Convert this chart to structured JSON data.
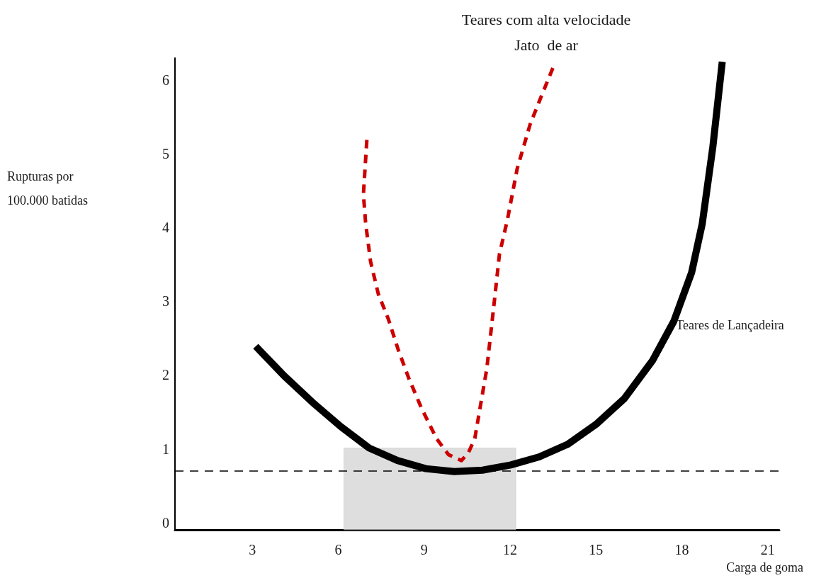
{
  "chart_data": {
    "type": "line",
    "xlabel": "Carga de goma",
    "annotations": [
      "Rupturas por\n100.000 batidas"
    ],
    "xlim": [
      0.3,
      21.4
    ],
    "xticks": [
      3,
      6,
      9,
      12,
      15,
      18,
      21
    ],
    "ylim": [
      -0.1,
      6.3
    ],
    "yticks": [
      0,
      1,
      2,
      3,
      4,
      5,
      6
    ],
    "grid": false,
    "legend": false,
    "marker": "none",
    "series": [
      {
        "name": "Teares de Lançadeira",
        "color": "#000000",
        "line_style": "solid",
        "x": [
          3.12,
          4.11,
          5.1,
          6.09,
          7.08,
          8.07,
          9.06,
          10.05,
          11.04,
          12.03,
          13.02,
          14.01,
          15.0,
          15.99,
          16.98,
          17.72,
          18.34,
          18.71,
          19.08,
          19.41
        ],
        "values": [
          2.39,
          1.99,
          1.63,
          1.3,
          1.01,
          0.84,
          0.73,
          0.69,
          0.71,
          0.78,
          0.89,
          1.06,
          1.33,
          1.68,
          2.2,
          2.73,
          3.39,
          4.05,
          5.09,
          6.25
        ]
      },
      {
        "name": "Teares com alta velocidade\nJato  de ar",
        "color": "#cc0000",
        "line_style": "dashed",
        "x": [
          7.0,
          6.88,
          6.96,
          7.13,
          7.4,
          7.75,
          8.09,
          8.47,
          8.91,
          9.43,
          9.85,
          10.3,
          10.54,
          10.77,
          11.19,
          11.46,
          11.63,
          11.91,
          12.25,
          12.7,
          13.09,
          13.51
        ],
        "values": [
          5.19,
          4.45,
          4.05,
          3.54,
          3.1,
          2.76,
          2.35,
          1.95,
          1.55,
          1.14,
          0.92,
          0.84,
          0.94,
          1.14,
          2.09,
          3.03,
          3.64,
          4.11,
          4.8,
          5.4,
          5.78,
          6.18
        ]
      }
    ],
    "ref_lines": [
      {
        "axis": "y",
        "value": 0.7,
        "color": "#000000",
        "line_style": "dashed"
      }
    ],
    "bands": [
      {
        "axis": "x",
        "from": 6.2,
        "to": 12.2,
        "color": "#c8c8c8"
      }
    ]
  }
}
